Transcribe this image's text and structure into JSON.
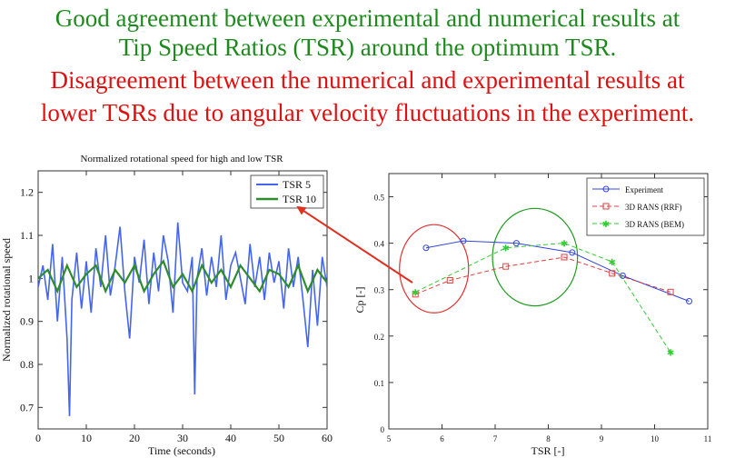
{
  "headlines": {
    "line1": "Good agreement between experimental and numerical results at",
    "line2": "Tip Speed Ratios (TSR) around the optimum TSR.",
    "line3": "Disagreement between the numerical and experimental results at",
    "line4": "lower TSRs due to angular velocity fluctuations in the experiment.",
    "color_agree": "#1e8a1e",
    "color_disagree": "#e01010"
  },
  "chart_data": [
    {
      "type": "line",
      "title": "Normalized rotational speed for high and low TSR",
      "xlabel": "Time (seconds)",
      "ylabel": "Normalized rotational speed",
      "xlim": [
        0,
        60
      ],
      "ylim": [
        0.65,
        1.25
      ],
      "xticks": [
        0,
        10,
        20,
        30,
        40,
        50,
        60
      ],
      "yticks": [
        0.7,
        0.8,
        0.9,
        1,
        1.1,
        1.2
      ],
      "ytick_labels": [
        "0.7",
        "0.8",
        "0.9",
        "1",
        "1.1",
        "1.2"
      ],
      "legend_position": "top-right",
      "grid": false,
      "series": [
        {
          "name": "TSR 5",
          "color": "#4466ee",
          "x": [
            0,
            1,
            2,
            3,
            4,
            5,
            6,
            6.5,
            7,
            8,
            9,
            10,
            11,
            12,
            13,
            14,
            15,
            16,
            17,
            18,
            19,
            20,
            21,
            22,
            23,
            24,
            25,
            26,
            27,
            28,
            29,
            30,
            31,
            32,
            32.5,
            33,
            34,
            35,
            36,
            37,
            38,
            39,
            40,
            41,
            42,
            43,
            44,
            45,
            46,
            47,
            48,
            49,
            50,
            51,
            52,
            53,
            54,
            55,
            56,
            57,
            58,
            59,
            60
          ],
          "values": [
            0.98,
            1.03,
            0.95,
            1.08,
            0.9,
            1.05,
            0.86,
            0.68,
            0.95,
            1.06,
            0.93,
            1.04,
            0.92,
            1.07,
            0.98,
            1.1,
            0.96,
            1.03,
            1.12,
            0.97,
            0.86,
            1.05,
            0.99,
            1.09,
            0.94,
            1.06,
            0.97,
            1.1,
            1.04,
            0.92,
            1.13,
            0.99,
            0.97,
            1.05,
            0.73,
            1.0,
            1.07,
            0.96,
            1.05,
            0.98,
            1.1,
            0.95,
            1.03,
            1.06,
            1.0,
            0.94,
            1.08,
            0.98,
            1.05,
            0.95,
            1.06,
            0.99,
            1.04,
            0.93,
            1.07,
            0.98,
            1.05,
            0.95,
            0.84,
            1.02,
            0.89,
            1.05,
            0.98
          ]
        },
        {
          "name": "TSR 10",
          "color": "#2e8b2e",
          "x": [
            0,
            2,
            4,
            6,
            8,
            10,
            12,
            14,
            16,
            18,
            20,
            22,
            24,
            26,
            28,
            30,
            32,
            34,
            36,
            38,
            40,
            42,
            44,
            46,
            48,
            50,
            52,
            54,
            56,
            58,
            60
          ],
          "values": [
            1.0,
            1.02,
            0.97,
            1.03,
            0.98,
            1.01,
            1.03,
            0.97,
            1.02,
            0.99,
            1.03,
            0.97,
            1.01,
            1.04,
            0.98,
            1.01,
            0.97,
            1.03,
            0.99,
            1.02,
            0.98,
            1.03,
            1.0,
            0.97,
            1.02,
            1.01,
            0.98,
            1.03,
            0.97,
            1.02,
            0.99
          ]
        }
      ]
    },
    {
      "type": "line",
      "xlabel": "TSR [-]",
      "ylabel": "Cp [-]",
      "xlim": [
        5,
        11
      ],
      "ylim": [
        0,
        0.55
      ],
      "xticks": [
        5,
        6,
        7,
        8,
        9,
        10,
        11
      ],
      "yticks": [
        0,
        0.1,
        0.2,
        0.3,
        0.4,
        0.5
      ],
      "ytick_labels": [
        "0",
        "0.1",
        "0.2",
        "0.3",
        "0.4",
        "0.5"
      ],
      "legend_position": "top-right",
      "grid": false,
      "series": [
        {
          "name": "Experiment",
          "color": "#3344dd",
          "marker": "circle",
          "dash": "solid",
          "x": [
            5.7,
            6.4,
            7.4,
            8.45,
            9.4,
            10.65
          ],
          "values": [
            0.39,
            0.405,
            0.4,
            0.38,
            0.33,
            0.275
          ]
        },
        {
          "name": "3D RANS (RRF)",
          "color": "#e04040",
          "marker": "square",
          "dash": "dashed",
          "x": [
            5.5,
            6.15,
            7.2,
            8.3,
            9.2,
            10.3
          ],
          "values": [
            0.29,
            0.32,
            0.35,
            0.37,
            0.335,
            0.295
          ]
        },
        {
          "name": "3D RANS (BEM)",
          "color": "#33cc33",
          "marker": "star",
          "dash": "dashed",
          "x": [
            5.5,
            7.2,
            8.3,
            9.2,
            10.3
          ],
          "values": [
            0.295,
            0.39,
            0.4,
            0.36,
            0.165
          ]
        }
      ],
      "annotations": [
        {
          "shape": "ellipse",
          "color": "#e03030",
          "center": [
            5.85,
            0.345
          ],
          "radius": [
            0.65,
            0.095
          ]
        },
        {
          "shape": "ellipse",
          "color": "#1e9a1e",
          "center": [
            7.75,
            0.37
          ],
          "radius": [
            0.8,
            0.105
          ]
        }
      ]
    }
  ]
}
